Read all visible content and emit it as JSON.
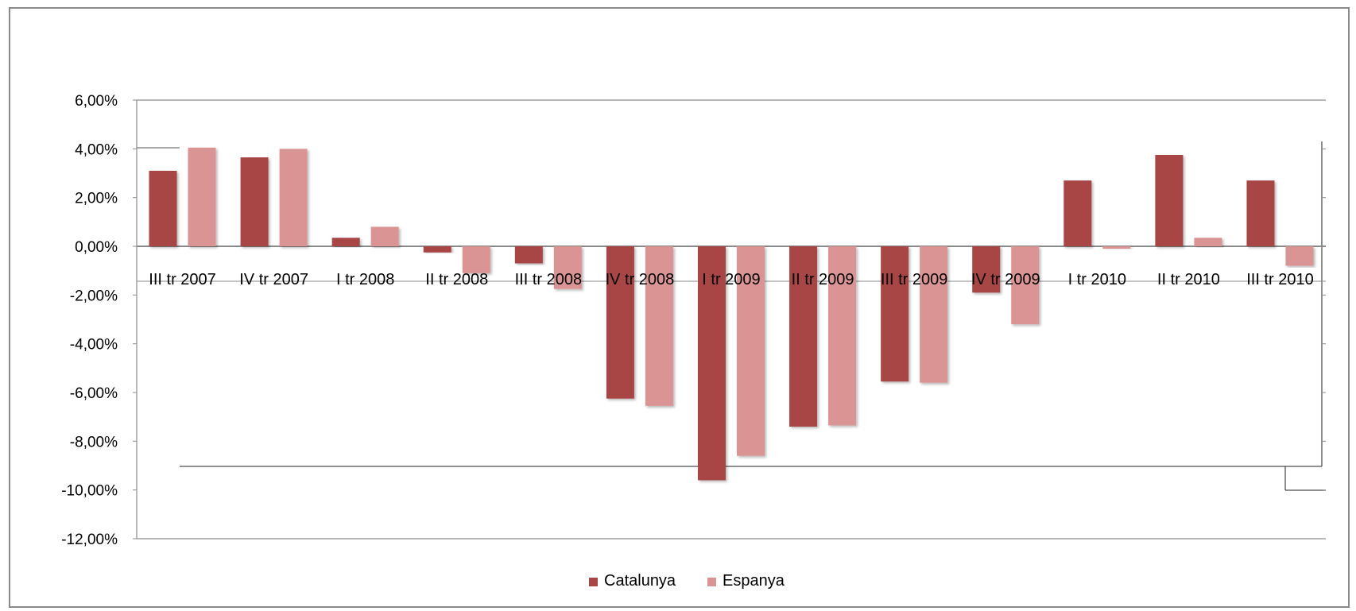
{
  "chart_data": {
    "type": "bar",
    "categories": [
      "III tr 2007",
      "IV tr 2007",
      "I tr 2008",
      "II tr 2008",
      "III tr 2008",
      "IV tr 2008",
      "I tr 2009",
      "II tr 2009",
      "III tr 2009",
      "IV tr 2009",
      "I tr 2010",
      "II tr 2010",
      "III tr 2010"
    ],
    "series": [
      {
        "name": "Catalunya",
        "color": "#a84545",
        "values": [
          3.1,
          3.65,
          0.35,
          -0.25,
          -0.7,
          -6.25,
          -9.6,
          -7.4,
          -5.55,
          -1.9,
          2.7,
          3.75,
          2.7
        ]
      },
      {
        "name": "Espanya",
        "color": "#d99493",
        "values": [
          4.05,
          4.0,
          0.8,
          -1.1,
          -1.75,
          -6.55,
          -8.6,
          -7.35,
          -5.6,
          -3.2,
          -0.1,
          0.35,
          -0.8
        ]
      }
    ],
    "yticks": [
      "6,00%",
      "4,00%",
      "2,00%",
      "0,00%",
      "-2,00%",
      "-4,00%",
      "-6,00%",
      "-8,00%",
      "-10,00%",
      "-12,00%"
    ],
    "ylim": [
      -12,
      6
    ],
    "legend_position": "bottom-center",
    "grid": false
  }
}
